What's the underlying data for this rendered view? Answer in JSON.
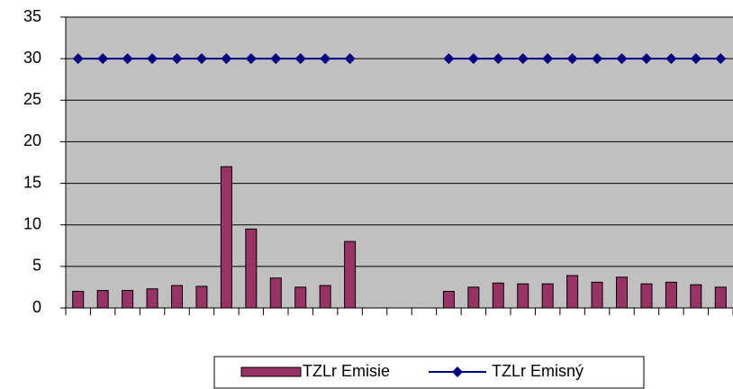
{
  "chart_data": {
    "type": "bar",
    "categories": [
      null,
      null,
      null,
      null,
      null,
      null,
      null,
      null,
      null,
      null,
      null,
      null,
      null,
      null,
      null,
      null,
      null,
      null,
      null,
      null,
      null,
      null,
      null,
      null,
      null,
      null,
      null
    ],
    "series": [
      {
        "name": "TZLr Emisie",
        "type": "bar",
        "color": "#993366",
        "values": [
          2,
          2.1,
          2.1,
          2.3,
          2.7,
          2.6,
          17,
          9.5,
          3.6,
          2.5,
          2.7,
          8,
          null,
          null,
          null,
          2,
          2.5,
          3,
          2.9,
          2.9,
          3.9,
          3.1,
          3.7,
          2.9,
          3.1,
          2.8,
          2.5
        ]
      },
      {
        "name": "TZLr Emisný",
        "type": "line",
        "color": "#000080",
        "values": [
          30,
          30,
          30,
          30,
          30,
          30,
          30,
          30,
          30,
          30,
          30,
          30,
          null,
          null,
          null,
          30,
          30,
          30,
          30,
          30,
          30,
          30,
          30,
          30,
          30,
          30,
          30
        ]
      }
    ],
    "ylim": [
      0,
      35
    ],
    "yticks": [
      0,
      5,
      10,
      15,
      20,
      25,
      30,
      35
    ],
    "grid": true,
    "legend": "bottom"
  }
}
